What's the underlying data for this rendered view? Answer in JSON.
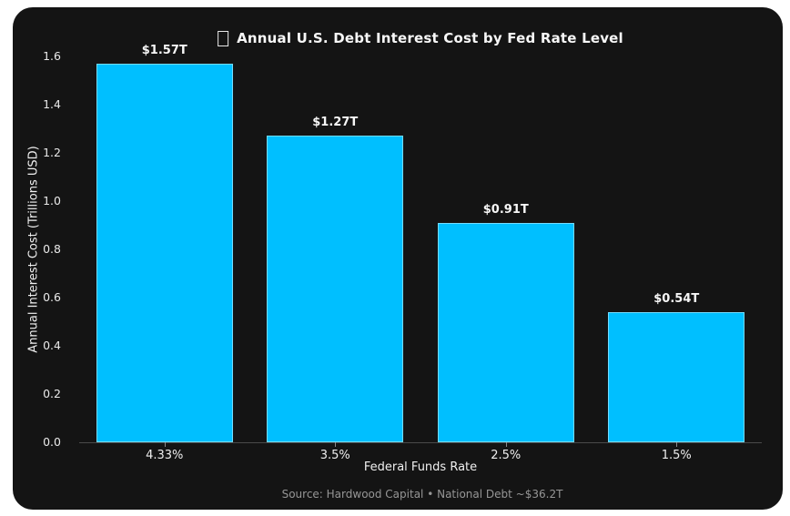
{
  "page": {
    "background_color": "#ffffff",
    "card_background_color": "#141414"
  },
  "chart_data": {
    "type": "bar",
    "title": "Annual U.S. Debt Interest Cost by Fed Rate Level",
    "title_icon": "missing-glyph-box",
    "xlabel": "Federal Funds Rate",
    "ylabel": "Annual Interest Cost (Trillions USD)",
    "categories": [
      "4.33%",
      "3.5%",
      "2.5%",
      "1.5%"
    ],
    "values": [
      1.57,
      1.27,
      0.91,
      0.54
    ],
    "bar_labels": [
      "$1.57T",
      "$1.27T",
      "$0.91T",
      "$0.54T"
    ],
    "ylim": [
      0,
      1.6
    ],
    "ytick_values": [
      0.0,
      0.2,
      0.4,
      0.6,
      0.8,
      1.0,
      1.2,
      1.4,
      1.6
    ],
    "ytick_labels": [
      "0.0",
      "0.2",
      "0.4",
      "0.6",
      "0.8",
      "1.0",
      "1.2",
      "1.4",
      "1.6"
    ],
    "grid": false,
    "legend": null,
    "bar_color": "#00BFFF",
    "bar_edge_color": "rgba(255,255,255,0.45)",
    "axis_line_color": "#4a4a4a",
    "source": "Source: Hardwood Capital • National Debt ~$36.2T"
  }
}
